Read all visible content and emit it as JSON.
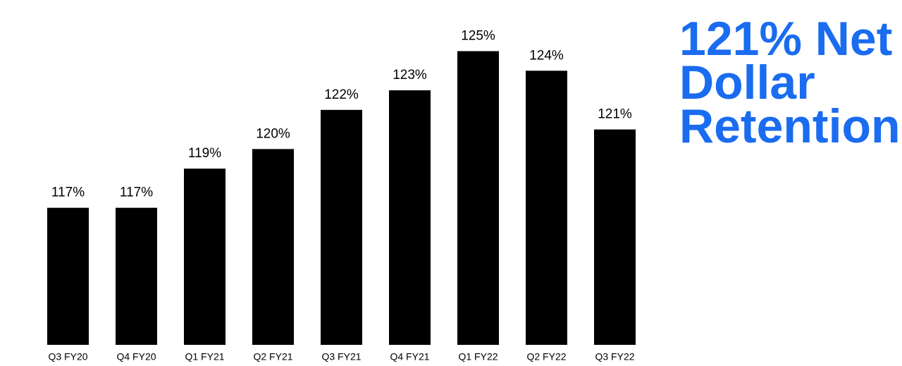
{
  "chart_data": {
    "type": "bar",
    "title": "121% Net Dollar Retention",
    "categories": [
      "Q3 FY20",
      "Q4 FY20",
      "Q1 FY21",
      "Q2 FY21",
      "Q3 FY21",
      "Q4 FY21",
      "Q1 FY22",
      "Q2 FY22",
      "Q3 FY22"
    ],
    "values": [
      117,
      117,
      119,
      120,
      122,
      123,
      125,
      124,
      121
    ],
    "value_labels": [
      "117%",
      "117%",
      "119%",
      "120%",
      "122%",
      "123%",
      "125%",
      "124%",
      "121%"
    ],
    "color": "#000000",
    "ylim": [
      110,
      127
    ]
  }
}
